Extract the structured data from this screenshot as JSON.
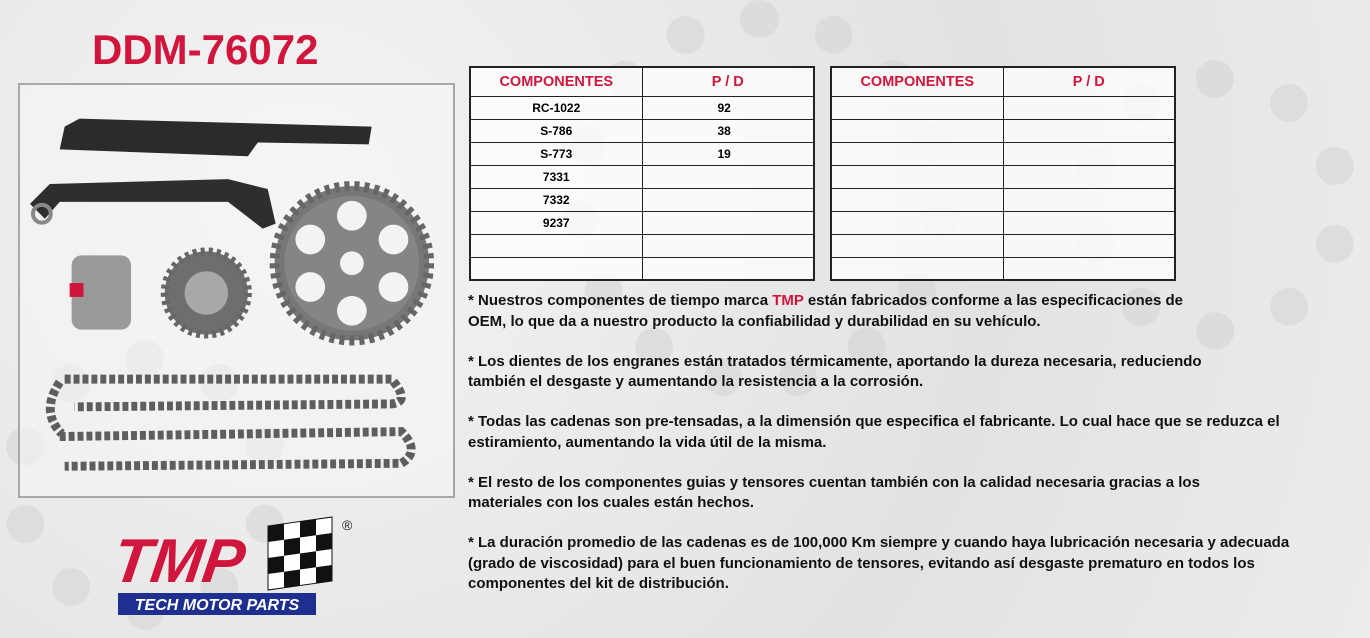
{
  "title": "DDM-76072",
  "table1": {
    "headers": [
      "COMPONENTES",
      "P / D"
    ],
    "rows": [
      [
        "RC-1022",
        "92"
      ],
      [
        "S-786",
        "38"
      ],
      [
        "S-773",
        "19"
      ],
      [
        "7331",
        ""
      ],
      [
        "7332",
        ""
      ],
      [
        "9237",
        ""
      ],
      [
        "",
        ""
      ],
      [
        "",
        ""
      ]
    ]
  },
  "table2": {
    "headers": [
      "COMPONENTES",
      "P / D"
    ],
    "rows": [
      [
        "",
        ""
      ],
      [
        "",
        ""
      ],
      [
        "",
        ""
      ],
      [
        "",
        ""
      ],
      [
        "",
        ""
      ],
      [
        "",
        ""
      ],
      [
        "",
        ""
      ],
      [
        "",
        ""
      ]
    ]
  },
  "notes": {
    "p1_pre": "* Nuestros componentes de tiempo marca ",
    "p1_brand": "TMP",
    "p1_post": " están fabricados conforme a las especificaciones de OEM, lo que da a nuestro producto la confiabilidad y durabilidad en su vehículo.",
    "p2": "* Los dientes de los engranes están tratados térmicamente, aportando la dureza necesaria, reduciendo también el desgaste y aumentando la resistencia a la corrosión.",
    "p3": "* Todas las cadenas son pre-tensadas, a la dimensión que especifica el fabricante. Lo cual hace que se reduzca el estiramiento, aumentando la vida útil de la misma.",
    "p4": "* El resto de los componentes guias y tensores cuentan también con la calidad necesaria gracias a los materiales con los cuales están hechos.",
    "p5": "* La duración promedio de las cadenas es de 100,000 Km siempre y cuando haya lubricación necesaria y adecuada (grado de viscosidad) para el buen funcionamiento de tensores, evitando así desgaste prematuro en todos los componentes del kit de distribución."
  },
  "logo": {
    "text": "TMP",
    "tagline": "TECH MOTOR PARTS",
    "registered": "®"
  },
  "colors": {
    "accent": "#d0163c",
    "logo_blue": "#1f2f8f"
  }
}
